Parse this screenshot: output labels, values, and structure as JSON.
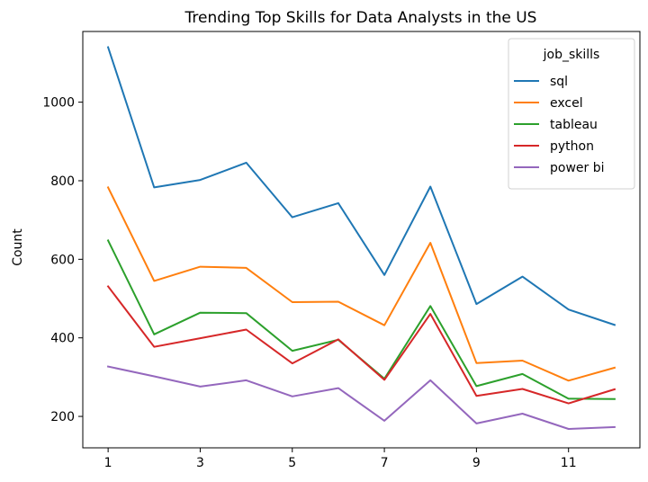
{
  "chart_data": {
    "type": "line",
    "title": "Trending Top Skills for Data Analysts in the US",
    "xlabel": "",
    "ylabel": "Count",
    "x": [
      1,
      2,
      3,
      4,
      5,
      6,
      7,
      8,
      9,
      10,
      11,
      12
    ],
    "xticks": [
      1,
      3,
      5,
      7,
      9,
      11
    ],
    "yticks": [
      200,
      400,
      600,
      800,
      1000
    ],
    "xlim": [
      0.45,
      12.55
    ],
    "ylim": [
      120,
      1180
    ],
    "legend": {
      "title": "job_skills",
      "position": "top-right"
    },
    "grid": false,
    "series": [
      {
        "name": "sql",
        "color": "#1f77b4",
        "values": [
          1140,
          783,
          802,
          846,
          707,
          743,
          560,
          785,
          486,
          556,
          472,
          433
        ]
      },
      {
        "name": "excel",
        "color": "#ff7f0e",
        "values": [
          783,
          545,
          581,
          578,
          491,
          492,
          432,
          642,
          336,
          342,
          291,
          324
        ]
      },
      {
        "name": "tableau",
        "color": "#2ca02c",
        "values": [
          648,
          409,
          464,
          463,
          367,
          395,
          296,
          481,
          277,
          308,
          245,
          244
        ]
      },
      {
        "name": "python",
        "color": "#d62728",
        "values": [
          531,
          377,
          399,
          421,
          335,
          396,
          293,
          461,
          252,
          270,
          233,
          269
        ]
      },
      {
        "name": "power bi",
        "color": "#9467bd",
        "values": [
          327,
          302,
          276,
          292,
          251,
          272,
          189,
          292,
          182,
          207,
          168,
          173
        ]
      }
    ]
  }
}
